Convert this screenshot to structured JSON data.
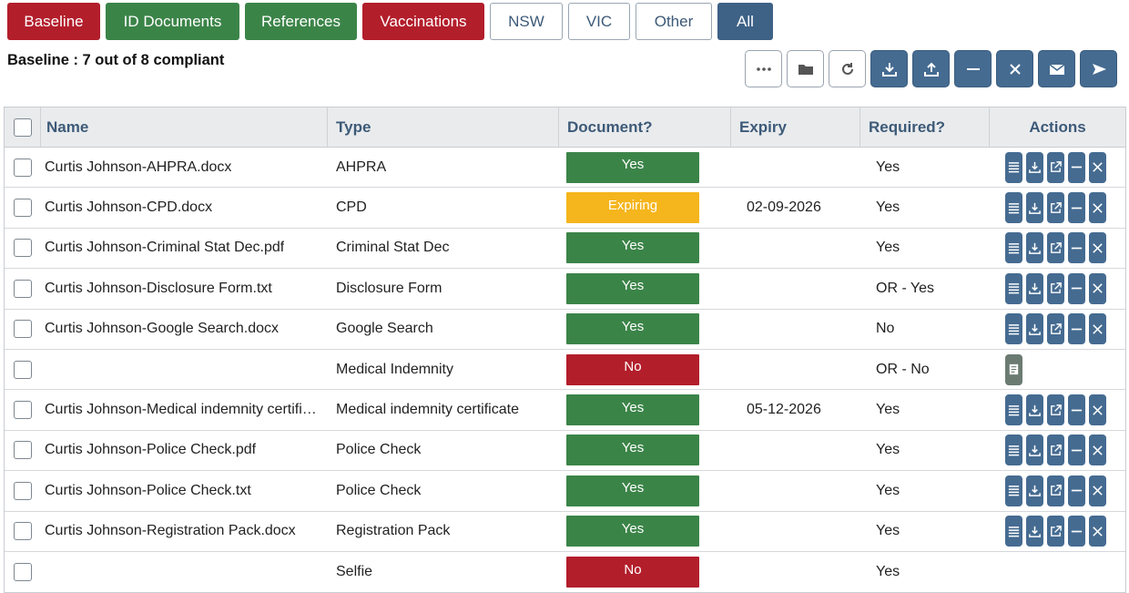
{
  "tabs": [
    {
      "label": "Baseline",
      "style": "red",
      "width": 102
    },
    {
      "label": "ID Documents",
      "style": "green",
      "width": 147
    },
    {
      "label": "References",
      "style": "green",
      "width": 123
    },
    {
      "label": "Vaccinations",
      "style": "red",
      "width": 134
    },
    {
      "label": "NSW",
      "style": "outline",
      "width": 80
    },
    {
      "label": "VIC",
      "style": "outline",
      "width": 68
    },
    {
      "label": "Other",
      "style": "outline",
      "width": 84
    },
    {
      "label": "All",
      "style": "active",
      "width": 61
    }
  ],
  "summary": "Baseline : 7 out of 8 compliant",
  "toolbar": [
    {
      "icon": "more-icon",
      "style": "light"
    },
    {
      "icon": "folder-icon",
      "style": "light"
    },
    {
      "icon": "refresh-icon",
      "style": "light"
    },
    {
      "icon": "download-icon",
      "style": "dark"
    },
    {
      "icon": "upload-icon",
      "style": "dark"
    },
    {
      "icon": "minus-icon",
      "style": "dark"
    },
    {
      "icon": "close-icon",
      "style": "dark"
    },
    {
      "icon": "mail-icon",
      "style": "dark"
    },
    {
      "icon": "send-icon",
      "style": "dark"
    }
  ],
  "table": {
    "headers": {
      "name": "Name",
      "type": "Type",
      "document": "Document?",
      "expiry": "Expiry",
      "required": "Required?",
      "actions": "Actions"
    },
    "rows": [
      {
        "name": "Curtis Johnson-AHPRA.docx",
        "type": "AHPRA",
        "document": "Yes",
        "expiry": "",
        "required": "Yes",
        "actions": "full"
      },
      {
        "name": "Curtis Johnson-CPD.docx",
        "type": "CPD",
        "document": "Expiring",
        "expiry": "02-09-2026",
        "required": "Yes",
        "actions": "full"
      },
      {
        "name": "Curtis Johnson-Criminal Stat Dec.pdf",
        "type": "Criminal Stat Dec",
        "document": "Yes",
        "expiry": "",
        "required": "Yes",
        "actions": "full"
      },
      {
        "name": "Curtis Johnson-Disclosure Form.txt",
        "type": "Disclosure Form",
        "document": "Yes",
        "expiry": "",
        "required": "OR - Yes",
        "actions": "full"
      },
      {
        "name": "Curtis Johnson-Google Search.docx",
        "type": "Google Search",
        "document": "Yes",
        "expiry": "",
        "required": "No",
        "actions": "full"
      },
      {
        "name": "",
        "type": "Medical Indemnity",
        "document": "No",
        "expiry": "",
        "required": "OR - No",
        "actions": "note"
      },
      {
        "name": "Curtis Johnson-Medical indemnity certific...",
        "type": "Medical indemnity certificate",
        "document": "Yes",
        "expiry": "05-12-2026",
        "required": "Yes",
        "actions": "full"
      },
      {
        "name": "Curtis Johnson-Police Check.pdf",
        "type": "Police Check",
        "document": "Yes",
        "expiry": "",
        "required": "Yes",
        "actions": "full"
      },
      {
        "name": "Curtis Johnson-Police Check.txt",
        "type": "Police Check",
        "document": "Yes",
        "expiry": "",
        "required": "Yes",
        "actions": "full"
      },
      {
        "name": "Curtis Johnson-Registration Pack.docx",
        "type": "Registration Pack",
        "document": "Yes",
        "expiry": "",
        "required": "Yes",
        "actions": "full"
      },
      {
        "name": "",
        "type": "Selfie",
        "document": "No",
        "expiry": "",
        "required": "Yes",
        "actions": "none"
      }
    ]
  },
  "colors": {
    "yes": "#3b8448",
    "expiring": "#f5b51c",
    "no": "#b31e2b",
    "accent": "#456b91"
  }
}
